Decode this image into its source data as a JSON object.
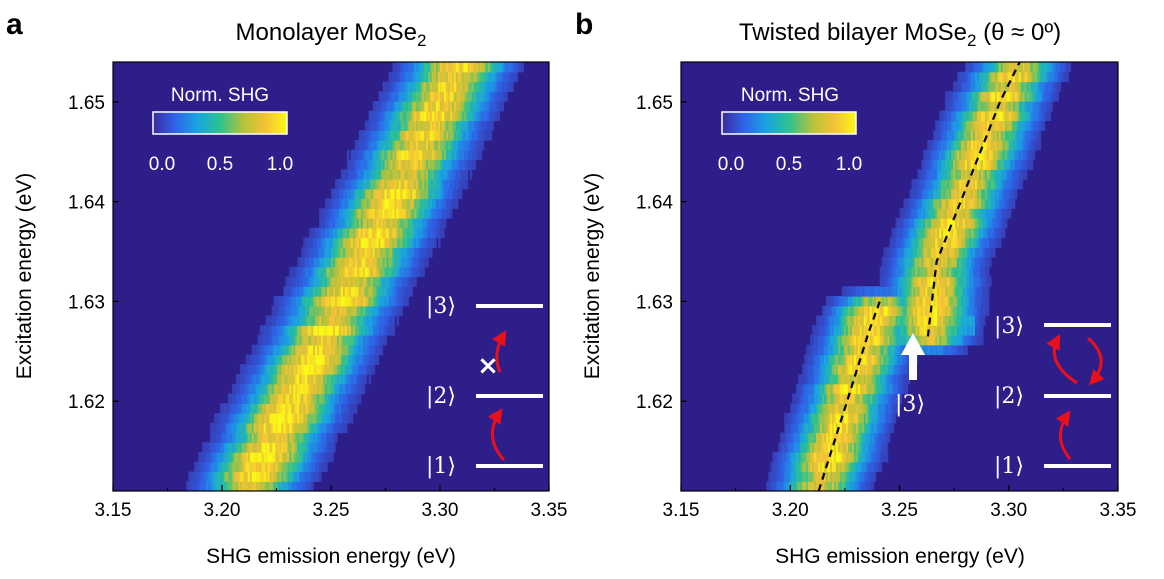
{
  "colors": {
    "background": "#2d1e8a",
    "colormap": [
      "#3b2a9c",
      "#2e63e6",
      "#1aa3e2",
      "#2dc28e",
      "#b9c23a",
      "#f4c237",
      "#f9f816"
    ],
    "arrow": "#e8101a",
    "line": "#ffffff",
    "fit": "#000000"
  },
  "chart_data": [
    {
      "panel": "a",
      "type": "heatmap",
      "title": "Monolayer MoSe",
      "title_subscript": "2",
      "xlabel": "SHG emission energy (eV)",
      "ylabel": "Excitation energy (eV)",
      "xlim": [
        3.15,
        3.35
      ],
      "ylim": [
        1.611,
        1.654
      ],
      "xticks": [
        "3.15",
        "3.20",
        "3.25",
        "3.30",
        "3.35"
      ],
      "yticks": [
        "1.62",
        "1.63",
        "1.64",
        "1.65"
      ],
      "colorbar": {
        "label": "Norm. SHG",
        "ticks": [
          "0.0",
          "0.5",
          "1.0"
        ],
        "range": [
          0,
          1
        ]
      },
      "peak_ridge": [
        {
          "excitation": 1.611,
          "emission": 3.212
        },
        {
          "excitation": 1.62,
          "emission": 3.232
        },
        {
          "excitation": 1.63,
          "emission": 3.255
        },
        {
          "excitation": 1.64,
          "emission": 3.278
        },
        {
          "excitation": 1.65,
          "emission": 3.3
        },
        {
          "excitation": 1.654,
          "emission": 3.31
        }
      ],
      "peak_width_eV": 0.013,
      "states": [
        "|1⟩",
        "|2⟩",
        "|3⟩"
      ],
      "blocked_marker": "×"
    },
    {
      "panel": "b",
      "type": "heatmap",
      "title": "Twisted bilayer MoSe",
      "title_subscript": "2",
      "title_suffix": " (θ ≈ 0º)",
      "xlabel": "SHG emission energy (eV)",
      "ylabel": "Excitation energy (eV)",
      "xlim": [
        3.15,
        3.35
      ],
      "ylim": [
        1.611,
        1.654
      ],
      "xticks": [
        "3.15",
        "3.20",
        "3.25",
        "3.30",
        "3.35"
      ],
      "yticks": [
        "1.62",
        "1.63",
        "1.64",
        "1.65"
      ],
      "colorbar": {
        "label": "Norm. SHG",
        "ticks": [
          "0.0",
          "0.5",
          "1.0"
        ],
        "range": [
          0,
          1
        ]
      },
      "lower_branch": [
        {
          "excitation": 1.611,
          "emission": 3.213
        },
        {
          "excitation": 1.62,
          "emission": 3.226
        },
        {
          "excitation": 1.627,
          "emission": 3.236
        },
        {
          "excitation": 1.63,
          "emission": 3.241
        }
      ],
      "upper_branch": [
        {
          "excitation": 1.6265,
          "emission": 3.263
        },
        {
          "excitation": 1.634,
          "emission": 3.267
        },
        {
          "excitation": 1.64,
          "emission": 3.278
        },
        {
          "excitation": 1.65,
          "emission": 3.296
        },
        {
          "excitation": 1.654,
          "emission": 3.305
        }
      ],
      "anticrossing": {
        "excitation": 1.6275,
        "label": "|3⟩",
        "arrow_emission": 3.254
      },
      "peak_width_eV": 0.011,
      "states": [
        "|1⟩",
        "|2⟩",
        "|3⟩"
      ]
    }
  ]
}
